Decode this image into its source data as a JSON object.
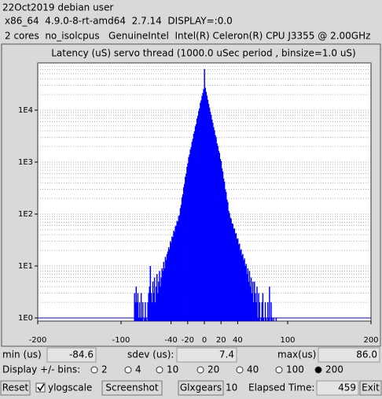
{
  "header": {
    "lines": [
      "22Oct2019 debian user",
      "x86_64  4.9.0-8-rt-amd64  2.7.14  DISPLAY=:0.0",
      "2 cores  no_isolcpus   GenuineIntel  Intel(R) Celeron(R) CPU J3355 @ 2.00GHz"
    ]
  },
  "chart_data": {
    "type": "histogram",
    "title": "Latency (uS) servo thread (1000.0 uSec period , binsize=1.0 uS)",
    "x": [
      -84,
      -83,
      -82,
      -81,
      -80,
      -79,
      -78,
      -77,
      -76,
      -75,
      -74,
      -73,
      -72,
      -71,
      -70,
      -69,
      -68,
      -67,
      -66,
      -65,
      -64,
      -63,
      -62,
      -61,
      -60,
      -59,
      -58,
      -57,
      -56,
      -55,
      -54,
      -53,
      -52,
      -51,
      -50,
      -49,
      -48,
      -47,
      -46,
      -45,
      -44,
      -43,
      -42,
      -41,
      -40,
      -39,
      -38,
      -37,
      -36,
      -35,
      -34,
      -33,
      -32,
      -31,
      -30,
      -29,
      -28,
      -27,
      -26,
      -25,
      -24,
      -23,
      -22,
      -21,
      -20,
      -19,
      -18,
      -17,
      -16,
      -15,
      -14,
      -13,
      -12,
      -11,
      -10,
      -9,
      -8,
      -7,
      -6,
      -5,
      -4,
      -3,
      -2,
      -1,
      0,
      1,
      2,
      3,
      4,
      5,
      6,
      7,
      8,
      9,
      10,
      11,
      12,
      13,
      14,
      15,
      16,
      17,
      18,
      19,
      20,
      21,
      22,
      23,
      24,
      25,
      26,
      27,
      28,
      29,
      30,
      31,
      32,
      33,
      34,
      35,
      36,
      37,
      38,
      39,
      40,
      41,
      42,
      43,
      44,
      45,
      46,
      47,
      48,
      49,
      50,
      51,
      52,
      53,
      54,
      55,
      56,
      57,
      58,
      59,
      60,
      61,
      62,
      63,
      64,
      65,
      66,
      67,
      68,
      69,
      70,
      71,
      72,
      73,
      74,
      75,
      76,
      77,
      78,
      79,
      80,
      81,
      82,
      83,
      84,
      85,
      86
    ],
    "values": [
      3,
      2,
      4,
      2,
      3,
      1,
      2,
      1,
      3,
      1,
      2,
      0,
      1,
      2,
      1,
      0,
      2,
      3,
      4,
      10,
      3,
      2,
      5,
      3,
      6,
      2,
      4,
      7,
      3,
      5,
      8,
      4,
      6,
      9,
      8,
      12,
      9,
      15,
      13,
      17,
      19,
      23,
      21,
      30,
      28,
      37,
      36,
      48,
      45,
      58,
      60,
      74,
      72,
      92,
      95,
      130,
      150,
      210,
      240,
      330,
      380,
      520,
      600,
      810,
      950,
      1250,
      1400,
      1750,
      1950,
      2450,
      2800,
      3500,
      3900,
      4900,
      5400,
      6900,
      7800,
      9600,
      10800,
      13800,
      15500,
      18800,
      21500,
      25500,
      62000,
      27000,
      22500,
      19000,
      15800,
      13200,
      11200,
      9300,
      8100,
      6600,
      5700,
      4700,
      4100,
      3300,
      3000,
      2300,
      2050,
      1650,
      1500,
      1150,
      1050,
      760,
      660,
      480,
      420,
      300,
      265,
      190,
      170,
      115,
      105,
      85,
      82,
      66,
      65,
      52,
      53,
      42,
      43,
      33,
      34,
      26,
      27,
      20,
      21,
      16,
      17,
      13,
      14,
      10,
      11,
      7,
      9,
      5,
      8,
      4,
      6,
      3,
      5,
      2,
      5,
      3,
      2,
      4,
      1,
      3,
      2,
      0,
      1,
      2,
      3,
      1,
      0,
      2,
      1,
      0,
      2,
      1,
      4,
      0,
      2,
      1,
      0,
      1,
      0,
      0,
      1
    ],
    "color": "#0000ff",
    "xlim": [
      -200,
      200
    ],
    "xticks": [
      -200,
      -100,
      -40,
      -20,
      0,
      20,
      40,
      100,
      200
    ],
    "ylim": [
      0.87,
      81000
    ],
    "log_y": true,
    "yticks": [
      {
        "value": 1,
        "label": "1E0"
      },
      {
        "value": 10,
        "label": "1E1"
      },
      {
        "value": 100,
        "label": "1E2"
      },
      {
        "value": 1000,
        "label": "1E3"
      },
      {
        "value": 10000,
        "label": "1E4"
      }
    ],
    "yminor": [
      2,
      3,
      4,
      5,
      6,
      7,
      8,
      9,
      20,
      30,
      40,
      50,
      60,
      70,
      80,
      90,
      200,
      300,
      400,
      500,
      600,
      700,
      800,
      900,
      2000,
      3000,
      4000,
      5000,
      6000,
      7000,
      8000,
      9000,
      20000,
      30000,
      40000,
      50000,
      60000,
      70000,
      80000
    ],
    "grid": true
  },
  "stats": {
    "min_label": "min (us)",
    "min": "-84.6",
    "sdev_label": "sdev (us):",
    "sdev": "7.4",
    "max_label": "max(us)",
    "max": "86.0"
  },
  "display_bins": {
    "label": "Display +/- bins:",
    "options": [
      "2",
      "4",
      "10",
      "20",
      "40",
      "100",
      "200"
    ],
    "selected": 6
  },
  "controls": {
    "reset": "Reset",
    "ylogscale": "ylogscale",
    "ylogscale_checked": true,
    "screenshot": "Screenshot",
    "glxgears": "Glxgears",
    "glxgears_count": "10",
    "elapsed_label": "Elapsed Time:",
    "elapsed": "459",
    "exit": "Exit"
  }
}
